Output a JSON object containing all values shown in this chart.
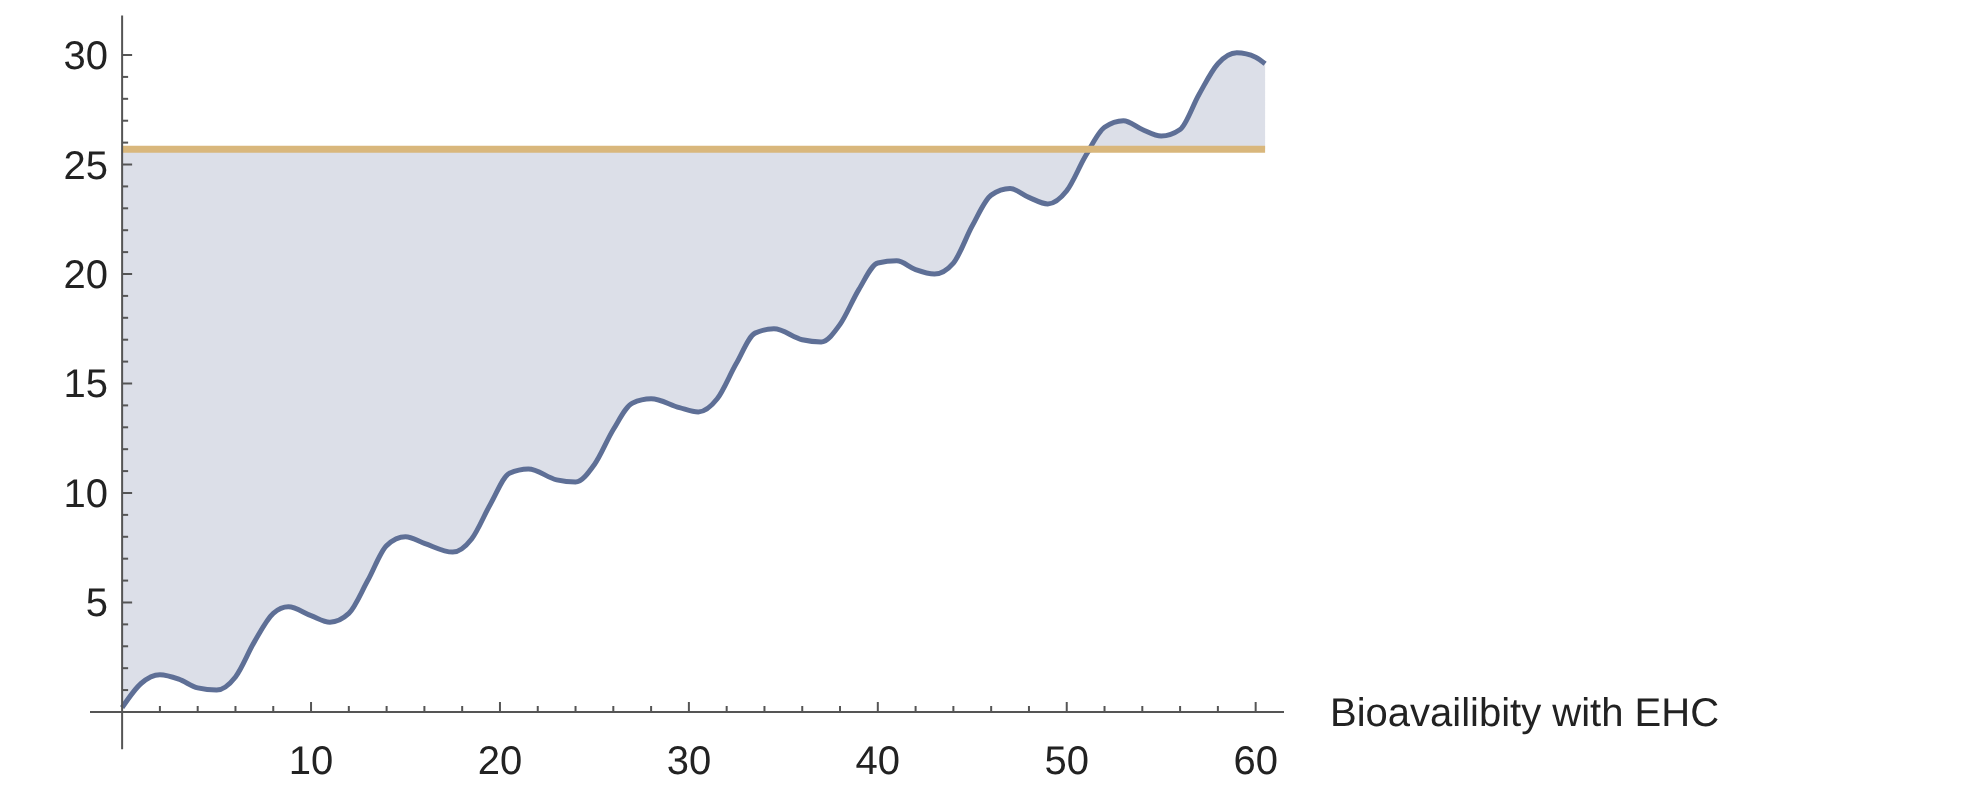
{
  "chart_data": {
    "type": "line",
    "xlabel": "Bioavailibity with EHC",
    "x": [
      0,
      1,
      2,
      3,
      4,
      5,
      6,
      7,
      8,
      8.8,
      10,
      11,
      12,
      13,
      14,
      15,
      16,
      17.5,
      18.5,
      19.5,
      20.5,
      21.5,
      23,
      24,
      25,
      26,
      27,
      28,
      29.5,
      30.5,
      31.5,
      32.5,
      33.5,
      34.5,
      36,
      37,
      38,
      39,
      40,
      41,
      42,
      43,
      44,
      45,
      46,
      47,
      48,
      49,
      50,
      51,
      52,
      53,
      54,
      55,
      56,
      57,
      58,
      59,
      60,
      60.5
    ],
    "series": [
      {
        "color": "#5e6f96",
        "values": [
          0.2,
          1.3,
          1.7,
          1.5,
          1.1,
          1.0,
          1.6,
          3.2,
          4.5,
          4.8,
          4.4,
          4.1,
          4.5,
          6.0,
          7.6,
          8.0,
          7.7,
          7.3,
          7.9,
          9.5,
          10.9,
          11.1,
          10.6,
          10.5,
          11.3,
          12.9,
          14.1,
          14.3,
          13.9,
          13.7,
          14.3,
          15.9,
          17.3,
          17.5,
          17.0,
          16.9,
          17.7,
          19.3,
          20.5,
          20.6,
          20.2,
          20.0,
          20.5,
          22.2,
          23.6,
          23.9,
          23.5,
          23.2,
          23.8,
          25.4,
          26.7,
          27.0,
          26.6,
          26.3,
          26.6,
          28.2,
          29.6,
          30.1,
          29.9,
          29.6
        ],
        "lower": [
          0.2,
          1.3,
          1.7,
          1.5,
          1.1,
          1.0,
          1.6,
          3.2,
          4.5,
          4.8,
          4.4,
          4.1,
          4.5,
          6.0,
          7.6,
          8.0,
          7.7,
          7.3,
          7.9,
          9.5,
          10.9,
          11.1,
          10.6,
          10.5,
          11.3,
          12.9,
          14.1,
          14.3,
          13.9,
          13.7,
          14.3,
          15.9,
          17.3,
          17.5,
          17.0,
          16.9,
          17.7,
          19.3,
          20.5,
          20.6,
          20.2,
          20.0,
          20.5,
          22.2,
          23.6,
          23.9,
          23.5,
          23.2,
          23.8,
          25.4,
          25.7,
          25.7,
          25.7,
          25.7,
          25.7,
          25.7,
          25.7,
          25.7,
          25.7,
          25.7
        ],
        "upper": [
          25.7,
          25.7,
          25.7,
          25.7,
          25.7,
          25.7,
          25.7,
          25.7,
          25.7,
          25.7,
          25.7,
          25.7,
          25.7,
          25.7,
          25.7,
          25.7,
          25.7,
          25.7,
          25.7,
          25.7,
          25.7,
          25.7,
          25.7,
          25.7,
          25.7,
          25.7,
          25.7,
          25.7,
          25.7,
          25.7,
          25.7,
          25.7,
          25.7,
          25.7,
          25.7,
          25.7,
          25.7,
          25.7,
          25.7,
          25.7,
          25.7,
          25.7,
          25.7,
          25.7,
          25.7,
          25.7,
          25.7,
          25.7,
          25.7,
          25.7,
          26.7,
          27.0,
          26.6,
          26.3,
          26.6,
          28.2,
          29.6,
          30.1,
          29.9,
          29.6
        ]
      }
    ],
    "ref_lines": [
      {
        "axis": "y",
        "value": 25.7,
        "color": "#d9b77c"
      }
    ],
    "xlim": [
      -1.7,
      61.5
    ],
    "ylim": [
      -1.7,
      31.8
    ],
    "xticks": [
      {
        "value": 2,
        "label": null
      },
      {
        "value": 4,
        "label": null
      },
      {
        "value": 6,
        "label": null
      },
      {
        "value": 8,
        "label": null
      },
      10,
      {
        "value": 12,
        "label": null
      },
      {
        "value": 14,
        "label": null
      },
      {
        "value": 16,
        "label": null
      },
      {
        "value": 18,
        "label": null
      },
      20,
      {
        "value": 22,
        "label": null
      },
      {
        "value": 24,
        "label": null
      },
      {
        "value": 26,
        "label": null
      },
      {
        "value": 28,
        "label": null
      },
      30,
      {
        "value": 32,
        "label": null
      },
      {
        "value": 34,
        "label": null
      },
      {
        "value": 36,
        "label": null
      },
      {
        "value": 38,
        "label": null
      },
      40,
      {
        "value": 42,
        "label": null
      },
      {
        "value": 44,
        "label": null
      },
      {
        "value": 46,
        "label": null
      },
      {
        "value": 48,
        "label": null
      },
      50,
      {
        "value": 52,
        "label": null
      },
      {
        "value": 54,
        "label": null
      },
      {
        "value": 56,
        "label": null
      },
      {
        "value": 58,
        "label": null
      },
      60
    ],
    "yticks": [
      {
        "value": 1,
        "label": null
      },
      {
        "value": 2,
        "label": null
      },
      {
        "value": 3,
        "label": null
      },
      {
        "value": 4,
        "label": null
      },
      5,
      {
        "value": 6,
        "label": null
      },
      {
        "value": 7,
        "label": null
      },
      {
        "value": 8,
        "label": null
      },
      {
        "value": 9,
        "label": null
      },
      10,
      {
        "value": 11,
        "label": null
      },
      {
        "value": 12,
        "label": null
      },
      {
        "value": 13,
        "label": null
      },
      {
        "value": 14,
        "label": null
      },
      15,
      {
        "value": 16,
        "label": null
      },
      {
        "value": 17,
        "label": null
      },
      {
        "value": 18,
        "label": null
      },
      {
        "value": 19,
        "label": null
      },
      20,
      {
        "value": 21,
        "label": null
      },
      {
        "value": 22,
        "label": null
      },
      {
        "value": 23,
        "label": null
      },
      {
        "value": 24,
        "label": null
      },
      25,
      {
        "value": 26,
        "label": null
      },
      {
        "value": 27,
        "label": null
      },
      {
        "value": 28,
        "label": null
      },
      {
        "value": 29,
        "label": null
      },
      30
    ],
    "grid": false
  }
}
